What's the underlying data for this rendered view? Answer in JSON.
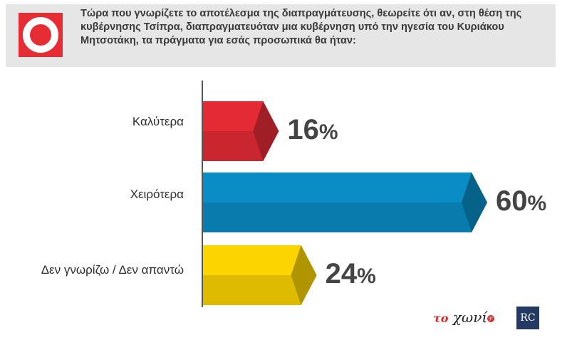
{
  "question": "Τώρα που γνωρίζετε το αποτέλεσμα της διαπραγμάτευσης, θεωρείτε ότι αν, στη θέση της κυβέρνησης Τσίπρα, διαπραγματευόταν μια κυβέρνηση υπό την ηγεσία του Κυριάκου Μητσοτάκη, τα πράγματα για εσάς προσωπικά θα ήταν:",
  "colors": {
    "header_bg": "#e6e6e6",
    "logo_red": "#e62d33",
    "better": "#e42b35",
    "worse": "#0a8cc4",
    "dont_know": "#fcd500"
  },
  "chart_data": {
    "type": "bar",
    "orientation": "horizontal",
    "categories": [
      "Καλύτερα",
      "Χειρότερα",
      "Δεν γνωρίζω / Δεν απαντώ"
    ],
    "values": [
      16,
      60,
      24
    ],
    "value_labels": [
      "16",
      "60",
      "24"
    ],
    "unit": "%",
    "grid": false
  },
  "branding": {
    "logo1_prefix": "το",
    "logo1_text": "χωνί",
    "logo1_badge": "gr",
    "logo2_text": "RC"
  }
}
